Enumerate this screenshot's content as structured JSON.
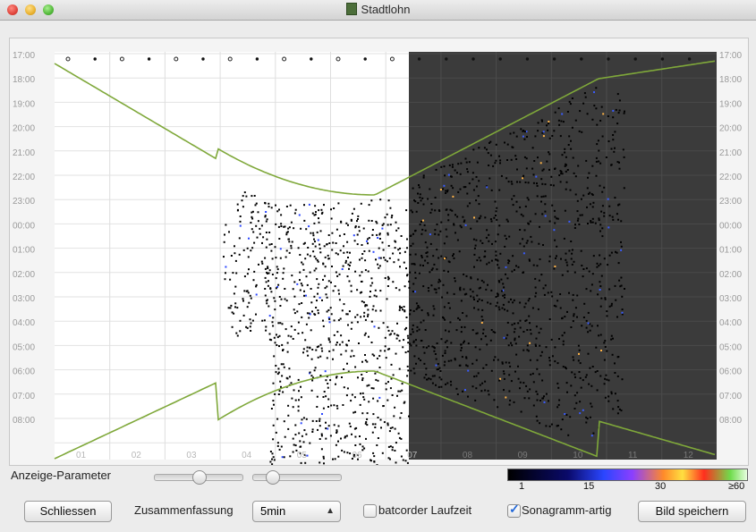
{
  "window": {
    "title": "Stadtlohn"
  },
  "plot": {
    "y_labels": [
      "17:00",
      "18:00",
      "19:00",
      "20:00",
      "21:00",
      "22:00",
      "23:00",
      "00:00",
      "01:00",
      "02:00",
      "03:00",
      "04:00",
      "05:00",
      "06:00",
      "07:00",
      "08:00"
    ],
    "x_labels": [
      "01",
      "02",
      "03",
      "04",
      "05",
      "06",
      "07",
      "08",
      "09",
      "10",
      "11",
      "12"
    ]
  },
  "controls": {
    "params_label": "Anzeige-Parameter",
    "colorbar_labels": [
      "1",
      "15",
      "30",
      "≥60"
    ],
    "close_button": "Schliessen",
    "summary_label": "Zusammenfassung",
    "summary_value": "5min",
    "batcorder_label": "batcorder Laufzeit",
    "batcorder_checked": false,
    "sonagramm_label": "Sonagramm-artig",
    "sonagramm_checked": true,
    "save_button": "Bild speichern"
  }
}
